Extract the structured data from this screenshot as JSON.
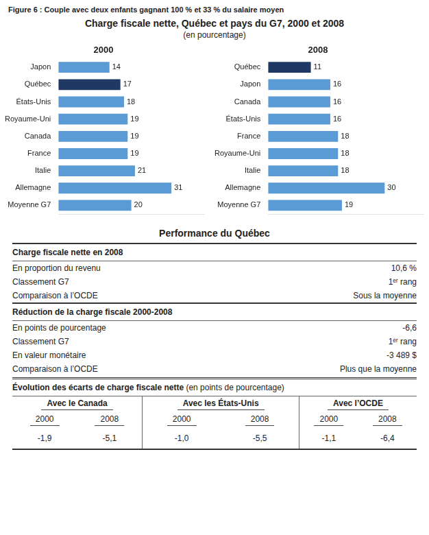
{
  "figure_label": "Figure 6 : Couple avec deux enfants gagnant 100 % et 33 % du salaire moyen",
  "title": "Charge fiscale nette, Québec et pays du G7, 2000 et 2008",
  "subtitle": "(en pourcentage)",
  "chart_data": [
    {
      "type": "bar",
      "title": "2000",
      "orientation": "horizontal",
      "categories": [
        "Japon",
        "Québec",
        "États-Unis",
        "Royaume-Uni",
        "Canada",
        "France",
        "Italie",
        "Allemagne",
        "Moyenne G7"
      ],
      "values": [
        14,
        17,
        18,
        19,
        19,
        19,
        21,
        31,
        20
      ],
      "colors": [
        "#5B9BD5",
        "#1F3864",
        "#5B9BD5",
        "#5B9BD5",
        "#5B9BD5",
        "#5B9BD5",
        "#5B9BD5",
        "#5B9BD5",
        "#5B9BD5"
      ],
      "xlim": [
        0,
        40
      ],
      "tick_labels": "y",
      "data_labels": true,
      "grid": false
    },
    {
      "type": "bar",
      "title": "2008",
      "orientation": "horizontal",
      "categories": [
        "Québec",
        "Japon",
        "Canada",
        "États-Unis",
        "France",
        "Royaume-Uni",
        "Italie",
        "Allemagne",
        "Moyenne G7"
      ],
      "values": [
        11,
        16,
        16,
        16,
        18,
        18,
        18,
        30,
        19
      ],
      "colors": [
        "#1F3864",
        "#5B9BD5",
        "#5B9BD5",
        "#5B9BD5",
        "#5B9BD5",
        "#5B9BD5",
        "#5B9BD5",
        "#5B9BD5",
        "#5B9BD5"
      ],
      "xlim": [
        0,
        40
      ],
      "tick_labels": "y",
      "data_labels": true,
      "grid": false
    }
  ],
  "table": {
    "title": "Performance du Québec",
    "sections": [
      {
        "title": "Charge fiscale nette en 2008",
        "rows": [
          [
            "En proportion du revenu",
            "10,6 %"
          ],
          [
            "Classement G7",
            "1ᵉʳ rang"
          ],
          [
            "Comparaison à l’OCDE",
            "Sous la moyenne"
          ]
        ]
      },
      {
        "title": "Réduction de la charge fiscale 2000-2008",
        "rows": [
          [
            "En points de pourcentage",
            "-6,6"
          ],
          [
            "Classement G7",
            "1ᵉʳ rang"
          ],
          [
            "En valeur monétaire",
            "-3 489 $"
          ],
          [
            "Comparaison à l’OCDE",
            "Plus que la moyenne"
          ]
        ]
      }
    ],
    "comparison": {
      "title_bold": "Évolution des écarts de charge fiscale nette",
      "title_normal": " (en points de pourcentage)",
      "headers": [
        "Avec le Canada",
        "Avec les États-Unis",
        "Avec l’OCDE"
      ],
      "sub_headers": [
        "2000",
        "2008",
        "2000",
        "2008",
        "2000",
        "2008"
      ],
      "values": [
        "-1,9",
        "-5,1",
        "-1,0",
        "-5,5",
        "-1,1",
        "-6,4"
      ]
    }
  }
}
